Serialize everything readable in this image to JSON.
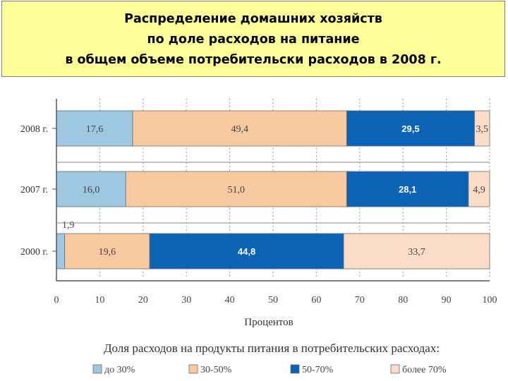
{
  "slide": {
    "title_lines": [
      "Распределение домашних хозяйств",
      "по доле расходов на питание",
      "в общем объеме потребительски расходов в 2008 г."
    ]
  },
  "chart_data": {
    "type": "bar",
    "orientation": "horizontal",
    "stacked": true,
    "categories": [
      "2008 г.",
      "2007 г.",
      "2000 г."
    ],
    "series": [
      {
        "name": "до 30%",
        "values": [
          17.6,
          16.0,
          1.9
        ],
        "labels": [
          "17,6",
          "16,0",
          "1,9"
        ],
        "color": "#9ec8e2"
      },
      {
        "name": "30-50%",
        "values": [
          49.4,
          51.0,
          19.6
        ],
        "labels": [
          "49,4",
          "51,0",
          "19,6"
        ],
        "color": "#f8c8a0"
      },
      {
        "name": "50-70%",
        "values": [
          29.5,
          28.1,
          44.8
        ],
        "labels": [
          "29,5",
          "28,1",
          "44,8"
        ],
        "color": "#0a63b5"
      },
      {
        "name": "более 70%",
        "values": [
          3.5,
          4.9,
          33.7
        ],
        "labels": [
          "3,5",
          "4,9",
          "33,7"
        ],
        "color": "#fbdcc8"
      }
    ],
    "xlabel": "Процентов",
    "xlim": [
      0,
      100
    ],
    "xticks": [
      0,
      10,
      20,
      30,
      40,
      50,
      60,
      70,
      80,
      90,
      100
    ],
    "grid": true,
    "legend_title": "Доля расходов на продукты питания в потребительских расходах:",
    "legend_position": "bottom"
  }
}
